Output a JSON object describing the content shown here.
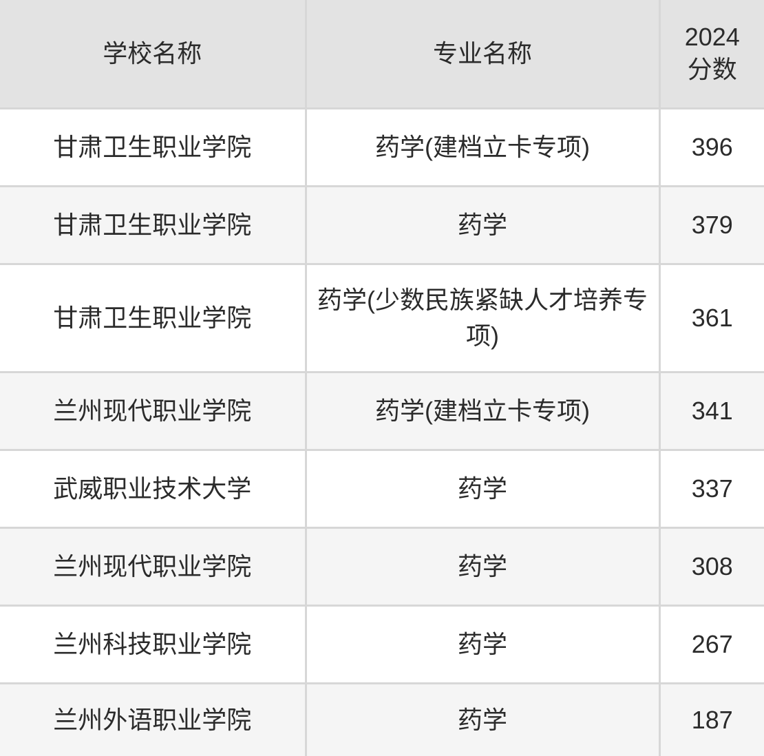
{
  "colors": {
    "header_bg": "#e3e3e3",
    "row_bg": "#ffffff",
    "row_alt_bg": "#f5f5f5",
    "grid_border": "#d7d7d7",
    "text": "#2b2b2b"
  },
  "table": {
    "headers": {
      "school": "学校名称",
      "major": "专业名称",
      "score": "2024\n分数"
    },
    "rows": [
      {
        "school": "甘肃卫生职业学院",
        "major": "药学(建档立卡专项)",
        "score": "396"
      },
      {
        "school": "甘肃卫生职业学院",
        "major": "药学",
        "score": "379"
      },
      {
        "school": "甘肃卫生职业学院",
        "major": "药学(少数民族紧缺人才培养专项)",
        "score": "361"
      },
      {
        "school": "兰州现代职业学院",
        "major": "药学(建档立卡专项)",
        "score": "341"
      },
      {
        "school": "武威职业技术大学",
        "major": "药学",
        "score": "337"
      },
      {
        "school": "兰州现代职业学院",
        "major": "药学",
        "score": "308"
      },
      {
        "school": "兰州科技职业学院",
        "major": "药学",
        "score": "267"
      },
      {
        "school": "兰州外语职业学院",
        "major": "药学",
        "score": "187"
      }
    ]
  }
}
